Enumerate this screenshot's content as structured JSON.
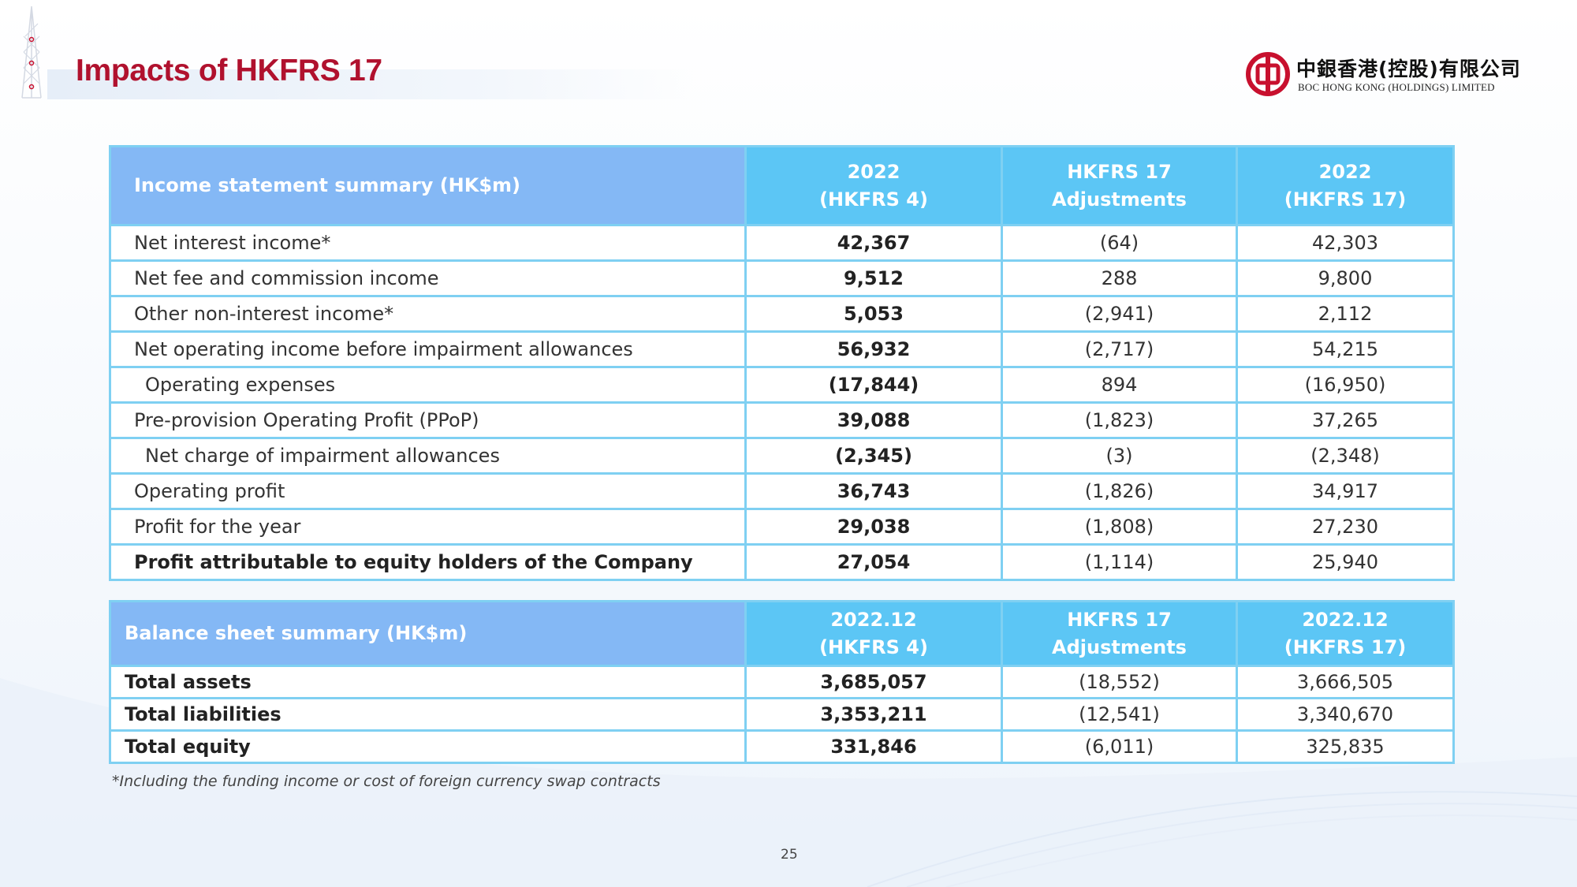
{
  "slide": {
    "title": "Impacts of HKFRS 17",
    "page_number": "25",
    "footnote": "*Including the funding income or cost of foreign currency swap contracts"
  },
  "logo": {
    "chinese_name": "中銀香港(控股)有限公司",
    "english_name": "BOC HONG KONG (HOLDINGS) LIMITED",
    "brand_color": "#c8102e"
  },
  "colors": {
    "title": "#b0112e",
    "header_first": "#84b8f5",
    "header_other": "#5cc6f5",
    "border": "#7fd0f2"
  },
  "income_table": {
    "headers": [
      {
        "line1": "Income statement summary (HK$m)",
        "line2": ""
      },
      {
        "line1": "2022",
        "line2": "(HKFRS 4)"
      },
      {
        "line1": "HKFRS 17",
        "line2": "Adjustments"
      },
      {
        "line1": "2022",
        "line2": "(HKFRS 17)"
      }
    ],
    "rows": [
      {
        "label": "Net interest income*",
        "hkfrs4": "42,367",
        "adjustments": "(64)",
        "hkfrs17": "42,303"
      },
      {
        "label": "Net fee and commission income",
        "hkfrs4": "9,512",
        "adjustments": "288",
        "hkfrs17": "9,800"
      },
      {
        "label": "Other non-interest income*",
        "hkfrs4": "5,053",
        "adjustments": "(2,941)",
        "hkfrs17": "2,112"
      },
      {
        "label": "Net operating income before impairment allowances",
        "hkfrs4": "56,932",
        "adjustments": "(2,717)",
        "hkfrs17": "54,215"
      },
      {
        "label": "Operating expenses",
        "hkfrs4": "(17,844)",
        "adjustments": "894",
        "hkfrs17": "(16,950)"
      },
      {
        "label": "Pre-provision Operating Profit (PPoP)",
        "hkfrs4": "39,088",
        "adjustments": "(1,823)",
        "hkfrs17": "37,265"
      },
      {
        "label": "Net charge of impairment allowances",
        "hkfrs4": "(2,345)",
        "adjustments": "(3)",
        "hkfrs17": "(2,348)"
      },
      {
        "label": "Operating profit",
        "hkfrs4": "36,743",
        "adjustments": "(1,826)",
        "hkfrs17": "34,917"
      },
      {
        "label": "Profit for the year",
        "hkfrs4": "29,038",
        "adjustments": "(1,808)",
        "hkfrs17": "27,230"
      },
      {
        "label": "Profit attributable to equity holders of the Company",
        "hkfrs4": "27,054",
        "adjustments": "(1,114)",
        "hkfrs17": "25,940"
      }
    ]
  },
  "balance_table": {
    "headers": [
      {
        "line1": "Balance sheet summary (HK$m)",
        "line2": ""
      },
      {
        "line1": "2022.12",
        "line2": "(HKFRS 4)"
      },
      {
        "line1": "HKFRS 17",
        "line2": "Adjustments"
      },
      {
        "line1": "2022.12",
        "line2": "(HKFRS 17)"
      }
    ],
    "rows": [
      {
        "label": "Total assets",
        "hkfrs4": "3,685,057",
        "adjustments": "(18,552)",
        "hkfrs17": "3,666,505"
      },
      {
        "label": "Total liabilities",
        "hkfrs4": "3,353,211",
        "adjustments": "(12,541)",
        "hkfrs17": "3,340,670"
      },
      {
        "label": "Total equity",
        "hkfrs4": "331,846",
        "adjustments": "(6,011)",
        "hkfrs17": "325,835"
      }
    ]
  }
}
